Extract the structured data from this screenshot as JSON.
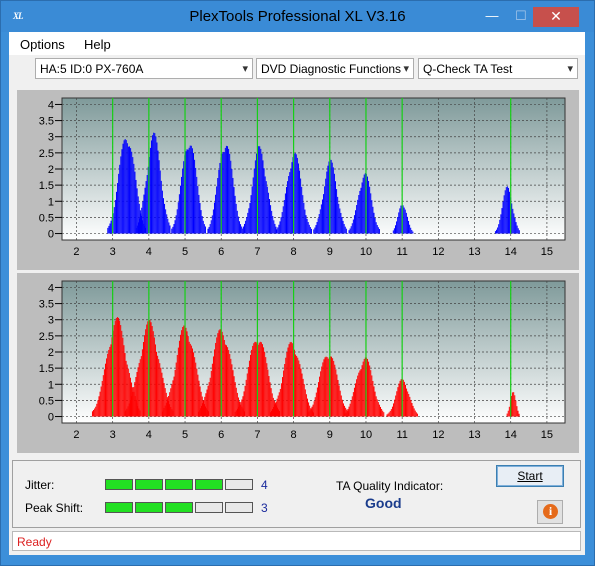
{
  "window": {
    "title": "PlexTools Professional XL V3.16",
    "icon_text": "XL"
  },
  "title_buttons": {
    "minimize": "—",
    "maximize": "☐",
    "close": "✕"
  },
  "menu": [
    {
      "label": "Options"
    },
    {
      "label": "Help"
    }
  ],
  "toolbar": {
    "drive": "HA:5 ID:0  PX-760A",
    "function": "DVD Diagnostic Functions",
    "test": "Q-Check TA Test",
    "arrow": "▾"
  },
  "chart_data": [
    {
      "type": "bar",
      "name": "top-distribution",
      "color": "#0000ff",
      "x_ticks": [
        2,
        3,
        4,
        5,
        6,
        7,
        8,
        9,
        10,
        11,
        12,
        13,
        14,
        15
      ],
      "y_ticks": [
        0,
        0.5,
        1,
        1.5,
        2,
        2.5,
        3,
        3.5,
        4
      ],
      "y_tick_labels": [
        "0",
        "0.5",
        "1",
        "1.5",
        "2",
        "2.5",
        "3",
        "3.5",
        "4"
      ],
      "xlim": [
        1.6,
        15.5
      ],
      "ylim": [
        -0.2,
        4.2
      ],
      "green_lines": [
        3,
        4,
        5,
        6,
        7,
        8,
        9,
        10,
        11,
        14
      ],
      "peaks": [
        {
          "center": 3.38,
          "height": 3.2,
          "width": 0.22
        },
        {
          "center": 4.12,
          "height": 3.15,
          "width": 0.2
        },
        {
          "center": 5.1,
          "height": 3.05,
          "width": 0.2
        },
        {
          "center": 6.1,
          "height": 3.0,
          "width": 0.2
        },
        {
          "center": 7.05,
          "height": 2.75,
          "width": 0.2
        },
        {
          "center": 8.0,
          "height": 2.6,
          "width": 0.2
        },
        {
          "center": 9.0,
          "height": 2.3,
          "width": 0.19
        },
        {
          "center": 9.95,
          "height": 1.95,
          "width": 0.18
        },
        {
          "center": 11.0,
          "height": 1.0,
          "width": 0.12
        },
        {
          "center": 13.9,
          "height": 1.5,
          "width": 0.14
        }
      ]
    },
    {
      "type": "bar",
      "name": "bottom-distribution",
      "color": "#ff0000",
      "x_ticks": [
        2,
        3,
        4,
        5,
        6,
        7,
        8,
        9,
        10,
        11,
        12,
        13,
        14,
        15
      ],
      "y_ticks": [
        0,
        0.5,
        1,
        1.5,
        2,
        2.5,
        3,
        3.5,
        4
      ],
      "y_tick_labels": [
        "0",
        "0.5",
        "1",
        "1.5",
        "2",
        "2.5",
        "3",
        "3.5",
        "4"
      ],
      "xlim": [
        1.6,
        15.5
      ],
      "ylim": [
        -0.2,
        4.2
      ],
      "green_lines": [
        3,
        4,
        5,
        6,
        7,
        8,
        9,
        10,
        11,
        14
      ],
      "peaks": [
        {
          "center": 3.1,
          "height": 3.1,
          "width": 0.28
        },
        {
          "center": 4.0,
          "height": 3.0,
          "width": 0.28
        },
        {
          "center": 5.0,
          "height": 2.9,
          "width": 0.27
        },
        {
          "center": 6.0,
          "height": 2.8,
          "width": 0.27
        },
        {
          "center": 7.0,
          "height": 2.6,
          "width": 0.26
        },
        {
          "center": 7.95,
          "height": 2.4,
          "width": 0.25
        },
        {
          "center": 8.95,
          "height": 2.1,
          "width": 0.24
        },
        {
          "center": 9.95,
          "height": 1.9,
          "width": 0.23
        },
        {
          "center": 11.0,
          "height": 1.2,
          "width": 0.18
        },
        {
          "center": 14.05,
          "height": 0.8,
          "width": 0.08
        }
      ]
    }
  ],
  "metrics": {
    "jitter_label": "Jitter:",
    "jitter_value": "4",
    "jitter_level": 4,
    "peak_label": "Peak Shift:",
    "peak_value": "3",
    "peak_level": 3,
    "segments_total": 5,
    "ta_label": "TA Quality Indicator:",
    "ta_value": "Good"
  },
  "buttons": {
    "start": "Start",
    "info": "i"
  },
  "status": {
    "text": "Ready"
  }
}
